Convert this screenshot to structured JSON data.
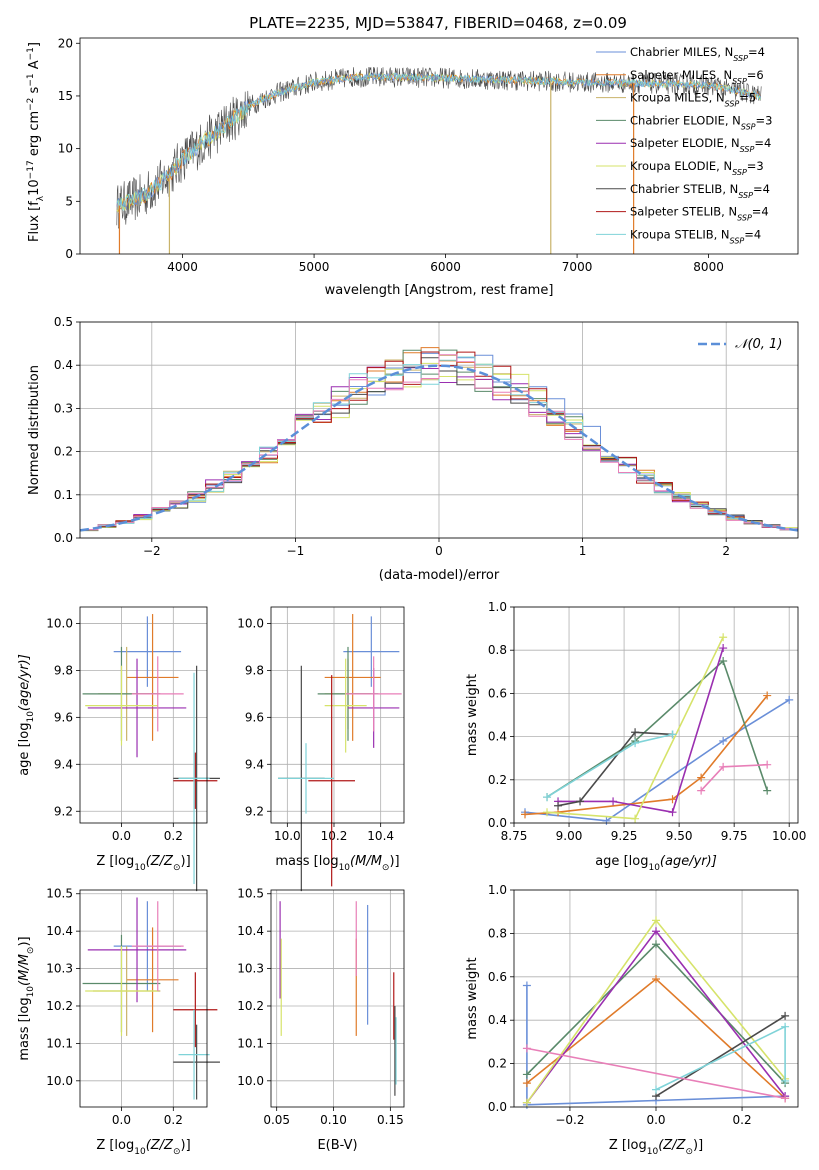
{
  "figure_title": "PLATE=2235, MJD=53847, FIBERID=0468, z=0.09",
  "colors": {
    "chabrier_miles": "#6a8fd8",
    "salpeter_miles": "#e07b2a",
    "kroupa_miles": "#c9b36a",
    "chabrier_elodie": "#5a8a6a",
    "salpeter_elodie": "#9a2fb0",
    "kroupa_elodie": "#d6e36a",
    "chabrier_stelib": "#4a4a4a",
    "salpeter_stelib": "#b01818",
    "kroupa_stelib": "#7fd3d8",
    "gaussian": "#5b8fd8",
    "grid": "#b0b0b0"
  },
  "chart_data": [
    {
      "id": "spectrum",
      "type": "line",
      "xlabel": "wavelength [Angstrom, rest frame]",
      "ylabel": "Flux [f",
      "ylabel_sub": "λ",
      "ylabel_rest": "10",
      "ylabel_sup1": "−17",
      "ylabel_rest2": " erg cm",
      "ylabel_sup2": "−2",
      "ylabel_rest3": " s",
      "ylabel_sup3": "−1",
      "ylabel_rest4": " A",
      "ylabel_sup4": "−1",
      "ylabel_end": "]",
      "xlim": [
        3220,
        8680
      ],
      "ylim": [
        0,
        20.5
      ],
      "xticks": [
        4000,
        5000,
        6000,
        7000,
        8000
      ],
      "yticks": [
        0,
        5,
        10,
        15,
        20
      ],
      "legend_position": "right",
      "legend": [
        {
          "label": "Chabrier MILES, N",
          "sub": "SSP",
          "eq": "=4",
          "color_key": "chabrier_miles"
        },
        {
          "label": "Salpeter MILES, N",
          "sub": "SSP",
          "eq": "=6",
          "color_key": "salpeter_miles"
        },
        {
          "label": "Kroupa MILES, N",
          "sub": "SSP",
          "eq": "=5",
          "color_key": "kroupa_miles"
        },
        {
          "label": "Chabrier ELODIE, N",
          "sub": "SSP",
          "eq": "=3",
          "color_key": "chabrier_elodie"
        },
        {
          "label": "Salpeter ELODIE, N",
          "sub": "SSP",
          "eq": "=4",
          "color_key": "salpeter_elodie"
        },
        {
          "label": "Kroupa ELODIE, N",
          "sub": "SSP",
          "eq": "=3",
          "color_key": "kroupa_elodie"
        },
        {
          "label": "Chabrier STELIB, N",
          "sub": "SSP",
          "eq": "=4",
          "color_key": "chabrier_stelib"
        },
        {
          "label": "Salpeter STELIB, N",
          "sub": "SSP",
          "eq": "=4",
          "color_key": "salpeter_stelib"
        },
        {
          "label": "Kroupa STELIB, N",
          "sub": "SSP",
          "eq": "=4",
          "color_key": "kroupa_stelib"
        }
      ],
      "continuum": {
        "x": [
          3500,
          3700,
          3900,
          4000,
          4100,
          4300,
          4500,
          4700,
          5000,
          5300,
          5600,
          6000,
          6500,
          7000,
          7500,
          8000,
          8400
        ],
        "y": [
          4.5,
          5.5,
          7.5,
          9,
          10,
          12,
          14,
          15.2,
          16.3,
          16.8,
          16.8,
          16.7,
          16.5,
          16.3,
          16.2,
          16.0,
          15.0
        ]
      },
      "data_x_range": [
        3500,
        8400
      ],
      "drops_to_zero": [
        3520,
        3900,
        6800,
        7430
      ]
    },
    {
      "id": "residuals",
      "type": "line",
      "xlabel": "(data-model)/error",
      "ylabel": "Normed distribution",
      "xlim": [
        -2.5,
        2.5
      ],
      "ylim": [
        0,
        0.5
      ],
      "xticks": [
        -2,
        -1,
        0,
        1,
        2
      ],
      "xtick_labels": [
        "−2",
        "−1",
        "0",
        "1",
        "2"
      ],
      "yticks": [
        0,
        0.1,
        0.2,
        0.3,
        0.4,
        0.5
      ],
      "ytick_labels": [
        "0.0",
        "0.1",
        "0.2",
        "0.3",
        "0.4",
        "0.5"
      ],
      "legend_label": "𝒩(0, 1)",
      "legend_position": "top-right",
      "bin_width": 0.125,
      "gaussian": {
        "mu": 0,
        "sigma": 1
      }
    },
    {
      "id": "age_vs_Z",
      "type": "scatter",
      "xlabel": "Z [log",
      "xlabel_sub": "10",
      "xlabel_rest": "(Z/Z",
      "xlabel_sub2": "⊙",
      "xlabel_end": ")]",
      "ylabel": "age  [log",
      "ylabel_sub": "10",
      "ylabel_rest": "(age/yr)]",
      "xlim": [
        -0.16,
        0.33
      ],
      "ylim": [
        9.15,
        10.07
      ],
      "xticks": [
        0.0,
        0.2
      ],
      "xtick_labels": [
        "0.0",
        "0.2"
      ],
      "yticks": [
        9.2,
        9.4,
        9.6,
        9.8,
        10.0
      ],
      "ytick_labels": [
        "9.2",
        "9.4",
        "9.6",
        "9.8",
        "10.0"
      ],
      "points": [
        {
          "x": 0.1,
          "y": 9.88,
          "xerr": 0.13,
          "yerr": 0.15,
          "c": "chabrier_miles"
        },
        {
          "x": 0.12,
          "y": 9.77,
          "xerr": 0.1,
          "yerr": 0.27,
          "c": "salpeter_miles"
        },
        {
          "x": 0.02,
          "y": 9.7,
          "xerr": 0.11,
          "yerr": 0.2,
          "c": "kroupa_miles"
        },
        {
          "x": 0.0,
          "y": 9.7,
          "xerr": 0.15,
          "yerr": 0.2,
          "c": "chabrier_elodie"
        },
        {
          "x": 0.06,
          "y": 9.64,
          "xerr": 0.19,
          "yerr": 0.21,
          "c": "salpeter_elodie"
        },
        {
          "x": 0.0,
          "y": 9.65,
          "xerr": 0.14,
          "yerr": 0.17,
          "c": "kroupa_elodie"
        },
        {
          "x": 0.29,
          "y": 9.34,
          "xerr": 0.09,
          "yerr": 0.48,
          "c": "chabrier_stelib"
        },
        {
          "x": 0.285,
          "y": 9.33,
          "xerr": 0.085,
          "yerr": 0.12,
          "c": "salpeter_stelib"
        },
        {
          "x": 0.28,
          "y": 9.34,
          "xerr": 0.06,
          "yerr": 0.45,
          "c": "kroupa_stelib"
        },
        {
          "x": 0.14,
          "y": 9.7,
          "xerr": 0.1,
          "yerr": 0.16,
          "c": "pink"
        }
      ]
    },
    {
      "id": "age_vs_mass",
      "type": "scatter",
      "xlabel": "mass [log",
      "xlabel_sub": "10",
      "xlabel_rest": "(M/M",
      "xlabel_sub2": "⊙",
      "xlabel_end": ")]",
      "xlim": [
        9.93,
        10.5
      ],
      "ylim": [
        9.15,
        10.07
      ],
      "xticks": [
        10.0,
        10.2,
        10.4
      ],
      "xtick_labels": [
        "10.0",
        "10.2",
        "10.4"
      ],
      "yticks": [
        9.2,
        9.4,
        9.6,
        9.8,
        10.0
      ],
      "ytick_labels": [
        "9.2",
        "9.4",
        "9.6",
        "9.8",
        "10.0"
      ],
      "points": [
        {
          "x": 10.36,
          "y": 9.88,
          "xerr": 0.12,
          "yerr": 0.15,
          "c": "chabrier_miles"
        },
        {
          "x": 10.28,
          "y": 9.77,
          "xerr": 0.12,
          "yerr": 0.27,
          "c": "salpeter_miles"
        },
        {
          "x": 10.26,
          "y": 9.7,
          "xerr": 0.1,
          "yerr": 0.15,
          "c": "kroupa_miles"
        },
        {
          "x": 10.26,
          "y": 9.7,
          "xerr": 0.13,
          "yerr": 0.2,
          "c": "chabrier_elodie"
        },
        {
          "x": 10.37,
          "y": 9.64,
          "xerr": 0.11,
          "yerr": 0.17,
          "c": "salpeter_elodie"
        },
        {
          "x": 10.25,
          "y": 9.65,
          "xerr": 0.09,
          "yerr": 0.2,
          "c": "kroupa_elodie"
        },
        {
          "x": 10.06,
          "y": 9.34,
          "xerr": 0.1,
          "yerr": 0.48,
          "c": "chabrier_stelib"
        },
        {
          "x": 10.19,
          "y": 9.33,
          "xerr": 0.1,
          "yerr": 0.45,
          "c": "salpeter_stelib"
        },
        {
          "x": 10.08,
          "y": 9.34,
          "xerr": 0.12,
          "yerr": 0.15,
          "c": "kroupa_stelib"
        },
        {
          "x": 10.37,
          "y": 9.7,
          "xerr": 0.12,
          "yerr": 0.16,
          "c": "pink"
        }
      ]
    },
    {
      "id": "massweight_vs_age",
      "type": "line",
      "xlabel": "age  [log",
      "xlabel_sub": "10",
      "xlabel_rest": "(age/yr)]",
      "ylabel": "mass weight",
      "xlim": [
        8.75,
        10.04
      ],
      "ylim": [
        0,
        1.0
      ],
      "xticks": [
        8.75,
        9.0,
        9.25,
        9.5,
        9.75,
        10.0
      ],
      "xtick_labels": [
        "8.75",
        "9.00",
        "9.25",
        "9.50",
        "9.75",
        "10.00"
      ],
      "yticks": [
        0,
        0.2,
        0.4,
        0.6,
        0.8,
        1.0
      ],
      "ytick_labels": [
        "0.0",
        "0.2",
        "0.4",
        "0.6",
        "0.8",
        "1.0"
      ],
      "series": [
        {
          "c": "chabrier_miles",
          "x": [
            8.8,
            9.17,
            9.7,
            10.0
          ],
          "y": [
            0.05,
            0.01,
            0.38,
            0.57
          ]
        },
        {
          "c": "salpeter_miles",
          "x": [
            8.8,
            8.95,
            9.47,
            9.6,
            9.9
          ],
          "y": [
            0.04,
            0.05,
            0.11,
            0.21,
            0.59
          ]
        },
        {
          "c": "chabrier_elodie",
          "x": [
            8.9,
            9.3,
            9.7,
            9.9
          ],
          "y": [
            0.12,
            0.38,
            0.75,
            0.15
          ]
        },
        {
          "c": "salpeter_elodie",
          "x": [
            8.95,
            9.2,
            9.47,
            9.7
          ],
          "y": [
            0.1,
            0.1,
            0.05,
            0.81
          ]
        },
        {
          "c": "kroupa_elodie",
          "x": [
            8.9,
            9.3,
            9.7
          ],
          "y": [
            0.05,
            0.02,
            0.86
          ]
        },
        {
          "c": "chabrier_stelib",
          "x": [
            8.95,
            9.05,
            9.3,
            9.47
          ],
          "y": [
            0.08,
            0.1,
            0.42,
            0.41
          ]
        },
        {
          "c": "kroupa_stelib",
          "x": [
            8.9,
            9.3,
            9.47
          ],
          "y": [
            0.12,
            0.37,
            0.41
          ]
        },
        {
          "c": "pink",
          "x": [
            9.6,
            9.7,
            9.9
          ],
          "y": [
            0.15,
            0.26,
            0.27
          ]
        }
      ]
    },
    {
      "id": "mass_vs_Z",
      "type": "scatter",
      "xlabel": "Z [log",
      "xlabel_sub": "10",
      "xlabel_rest": "(Z/Z",
      "xlabel_sub2": "⊙",
      "xlabel_end": ")]",
      "ylabel": "mass [log",
      "ylabel_sub": "10",
      "ylabel_rest": "(M/M",
      "ylabel_sub2": "⊙",
      "ylabel_end": ")]",
      "xlim": [
        -0.16,
        0.33
      ],
      "ylim": [
        9.93,
        10.51
      ],
      "xticks": [
        0.0,
        0.2
      ],
      "xtick_labels": [
        "0.0",
        "0.2"
      ],
      "yticks": [
        10.0,
        10.1,
        10.2,
        10.3,
        10.4,
        10.5
      ],
      "ytick_labels": [
        "10.0",
        "10.1",
        "10.2",
        "10.3",
        "10.4",
        "10.5"
      ],
      "points": [
        {
          "x": 0.1,
          "y": 10.36,
          "xerr": 0.13,
          "yerr": 0.12,
          "c": "chabrier_miles"
        },
        {
          "x": 0.12,
          "y": 10.27,
          "xerr": 0.1,
          "yerr": 0.14,
          "c": "salpeter_miles"
        },
        {
          "x": 0.02,
          "y": 10.24,
          "xerr": 0.13,
          "yerr": 0.12,
          "c": "kroupa_miles"
        },
        {
          "x": 0.0,
          "y": 10.26,
          "xerr": 0.15,
          "yerr": 0.13,
          "c": "chabrier_elodie"
        },
        {
          "x": 0.06,
          "y": 10.35,
          "xerr": 0.19,
          "yerr": 0.14,
          "c": "salpeter_elodie"
        },
        {
          "x": 0.0,
          "y": 10.24,
          "xerr": 0.14,
          "yerr": 0.12,
          "c": "kroupa_elodie"
        },
        {
          "x": 0.29,
          "y": 10.05,
          "xerr": 0.09,
          "yerr": 0.1,
          "c": "chabrier_stelib"
        },
        {
          "x": 0.285,
          "y": 10.19,
          "xerr": 0.085,
          "yerr": 0.1,
          "c": "salpeter_stelib"
        },
        {
          "x": 0.28,
          "y": 10.07,
          "xerr": 0.06,
          "yerr": 0.12,
          "c": "kroupa_stelib"
        },
        {
          "x": 0.14,
          "y": 10.36,
          "xerr": 0.1,
          "yerr": 0.12,
          "c": "pink"
        }
      ]
    },
    {
      "id": "mass_vs_ebv",
      "type": "scatter",
      "xlabel": "E(B-V)",
      "xlim": [
        0.045,
        0.162
      ],
      "ylim": [
        9.93,
        10.51
      ],
      "xticks": [
        0.05,
        0.1,
        0.15
      ],
      "xtick_labels": [
        "0.05",
        "0.10",
        "0.15"
      ],
      "yticks": [
        10.0,
        10.1,
        10.2,
        10.3,
        10.4,
        10.5
      ],
      "ytick_labels": [
        "10.0",
        "10.1",
        "10.2",
        "10.3",
        "10.4",
        "10.5"
      ],
      "points": [
        {
          "x": 0.13,
          "y": 10.31,
          "yerr": 0.16,
          "c": "chabrier_miles"
        },
        {
          "x": 0.12,
          "y": 10.25,
          "yerr": 0.13,
          "c": "salpeter_miles"
        },
        {
          "x": 0.053,
          "y": 10.35,
          "yerr": 0.13,
          "c": "salpeter_elodie"
        },
        {
          "x": 0.054,
          "y": 10.25,
          "yerr": 0.13,
          "c": "kroupa_elodie"
        },
        {
          "x": 0.12,
          "y": 10.38,
          "yerr": 0.1,
          "c": "pink"
        },
        {
          "x": 0.153,
          "y": 10.2,
          "yerr": 0.09,
          "c": "salpeter_stelib"
        },
        {
          "x": 0.154,
          "y": 10.08,
          "yerr": 0.12,
          "c": "chabrier_stelib"
        },
        {
          "x": 0.155,
          "y": 10.08,
          "yerr": 0.09,
          "c": "kroupa_stelib"
        }
      ]
    },
    {
      "id": "massweight_vs_Z",
      "type": "line",
      "xlabel": "Z [log",
      "xlabel_sub": "10",
      "xlabel_rest": "(Z/Z",
      "xlabel_sub2": "⊙",
      "xlabel_end": ")]",
      "ylabel": "mass weight",
      "xlim": [
        -0.33,
        0.33
      ],
      "ylim": [
        0,
        1.0
      ],
      "xticks": [
        -0.2,
        0.0,
        0.2
      ],
      "xtick_labels": [
        "−0.2",
        "0.0",
        "0.2"
      ],
      "yticks": [
        0,
        0.2,
        0.4,
        0.6,
        0.8,
        1.0
      ],
      "ytick_labels": [
        "0.0",
        "0.2",
        "0.4",
        "0.6",
        "0.8",
        "1.0"
      ],
      "series": [
        {
          "c": "chabrier_miles",
          "x": [
            -0.3,
            -0.3,
            0.0,
            0.3
          ],
          "y": [
            0.56,
            0.01,
            0.03,
            0.05
          ]
        },
        {
          "c": "salpeter_miles",
          "x": [
            -0.3,
            0.0,
            0.3
          ],
          "y": [
            0.11,
            0.59,
            0.04
          ]
        },
        {
          "c": "chabrier_elodie",
          "x": [
            -0.3,
            0.0,
            0.3
          ],
          "y": [
            0.15,
            0.75,
            0.11
          ]
        },
        {
          "c": "salpeter_elodie",
          "x": [
            -0.3,
            0.0,
            0.3
          ],
          "y": [
            0.02,
            0.81,
            0.05
          ]
        },
        {
          "c": "kroupa_elodie",
          "x": [
            -0.3,
            0.0,
            0.3
          ],
          "y": [
            0.02,
            0.86,
            0.13
          ]
        },
        {
          "c": "chabrier_stelib",
          "x": [
            0.0,
            0.3
          ],
          "y": [
            0.05,
            0.42
          ]
        },
        {
          "c": "kroupa_stelib",
          "x": [
            0.0,
            0.3,
            0.3
          ],
          "y": [
            0.08,
            0.37,
            0.12
          ]
        },
        {
          "c": "pink",
          "x": [
            -0.3,
            0.3
          ],
          "y": [
            0.27,
            0.04
          ]
        }
      ]
    }
  ]
}
